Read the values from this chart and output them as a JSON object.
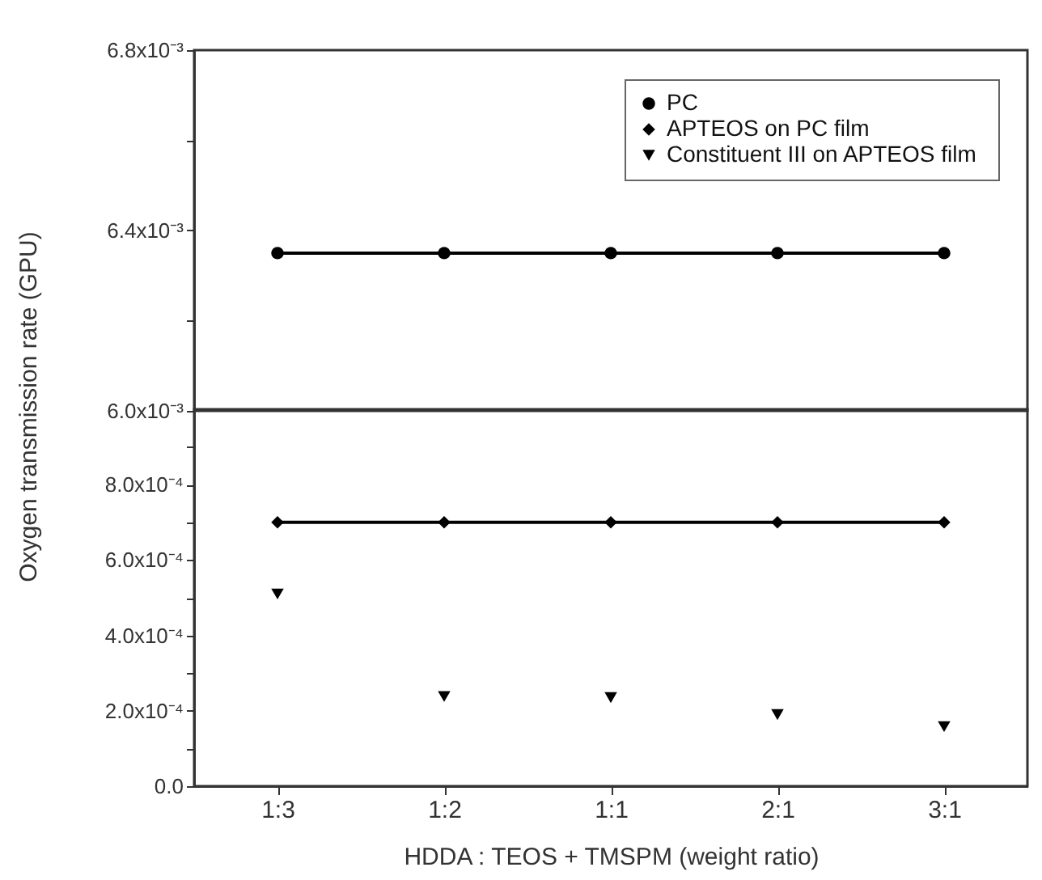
{
  "chart_data": [
    {
      "type": "line",
      "categories": [
        null,
        null,
        null,
        null,
        null
      ],
      "ylim": [
        0.006,
        0.0068
      ],
      "yticks": [
        {
          "value": 0.006,
          "label": "6.0x10⁻³"
        },
        {
          "value": 0.0062,
          "label": null
        },
        {
          "value": 0.0064,
          "label": "6.4x10⁻³"
        },
        {
          "value": 0.0066,
          "label": null
        },
        {
          "value": 0.0068,
          "label": "6.8x10⁻³"
        }
      ],
      "tick_labels": "y",
      "legend": "top right",
      "ylabel": "Oxygen transmission rate (GPU)",
      "series": [
        {
          "name": "PC",
          "type": "line",
          "marker": "circle",
          "color": "#000000",
          "values": [
            0.00635,
            0.00635,
            0.00635,
            0.00635,
            0.00635
          ]
        },
        {
          "name": "APTEOS on PC film",
          "type": "line",
          "marker": "diamond",
          "color": "#000000",
          "values": [
            null,
            null,
            null,
            null,
            null
          ]
        },
        {
          "name": "Constituent  III on APTEOS film",
          "type": "scatter",
          "marker": "triangle",
          "color": "#000000",
          "values": [
            null,
            null,
            null,
            null,
            null
          ]
        }
      ]
    },
    {
      "type": "line",
      "categories": [
        "1:3",
        "1:2",
        "1:1",
        "2:1",
        "3:1"
      ],
      "ylim": [
        0,
        0.001
      ],
      "yticks": [
        {
          "value": 0,
          "label": "0.0"
        },
        {
          "value": 0.0001,
          "label": null
        },
        {
          "value": 0.0002,
          "label": "2.0x10⁻⁴"
        },
        {
          "value": 0.0003,
          "label": null
        },
        {
          "value": 0.0004,
          "label": "4.0x10⁻⁴"
        },
        {
          "value": 0.0005,
          "label": null
        },
        {
          "value": 0.0006,
          "label": "6.0x10⁻⁴"
        },
        {
          "value": 0.0007,
          "label": null
        },
        {
          "value": 0.0008,
          "label": "8.0x10⁻⁴"
        },
        {
          "value": 0.0009,
          "label": null
        }
      ],
      "xlabel": "HDDA : TEOS + TMSPM (weight ratio)",
      "series": [
        {
          "type": "line",
          "marker": "diamond",
          "color": "#000000",
          "values": [
            0.0007,
            0.0007,
            0.0007,
            0.0007,
            0.0007
          ]
        },
        {
          "type": "scatter",
          "marker": "triangle",
          "color": "#000000",
          "values": [
            0.00051,
            0.000238,
            0.000235,
            0.00019,
            0.000158
          ]
        }
      ]
    }
  ]
}
